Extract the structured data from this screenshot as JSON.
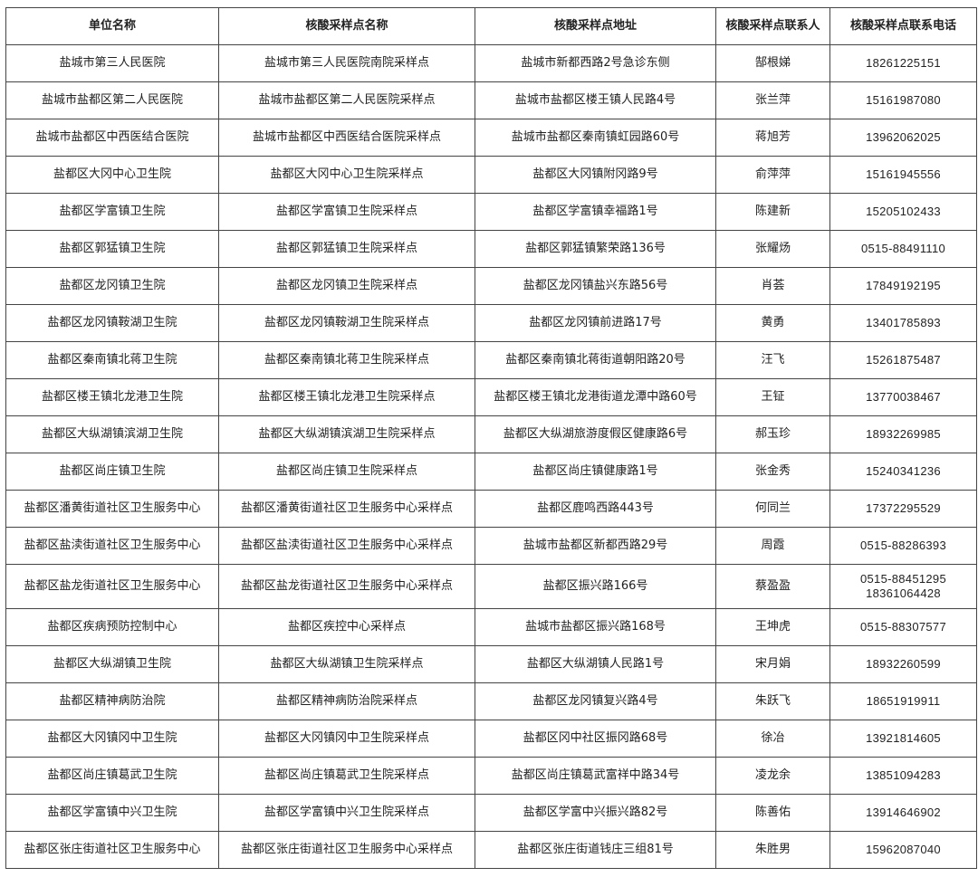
{
  "headers": [
    "单位名称",
    "核酸采样点名称",
    "核酸采样点地址",
    "核酸采样点联系人",
    "核酸采样点联系电话"
  ],
  "rows": [
    {
      "unit": "盐城市第三人民医院",
      "site": "盐城市第三人民医院南院采样点",
      "address": "盐城市新都西路2号急诊东侧",
      "contact": "郜根娣",
      "phone": [
        "18261225151"
      ]
    },
    {
      "unit": "盐城市盐都区第二人民医院",
      "site": "盐城市盐都区第二人民医院采样点",
      "address": "盐城市盐都区楼王镇人民路4号",
      "contact": "张兰萍",
      "phone": [
        "15161987080"
      ]
    },
    {
      "unit": "盐城市盐都区中西医结合医院",
      "site": "盐城市盐都区中西医结合医院采样点",
      "address": "盐城市盐都区秦南镇虹园路60号",
      "contact": "蒋旭芳",
      "phone": [
        "13962062025"
      ]
    },
    {
      "unit": "盐都区大冈中心卫生院",
      "site": "盐都区大冈中心卫生院采样点",
      "address": "盐都区大冈镇附冈路9号",
      "contact": "俞萍萍",
      "phone": [
        "15161945556"
      ]
    },
    {
      "unit": "盐都区学富镇卫生院",
      "site": "盐都区学富镇卫生院采样点",
      "address": "盐都区学富镇幸福路1号",
      "contact": "陈建新",
      "phone": [
        "15205102433"
      ]
    },
    {
      "unit": "盐都区郭猛镇卫生院",
      "site": "盐都区郭猛镇卫生院采样点",
      "address": "盐都区郭猛镇繁荣路136号",
      "contact": "张耀炀",
      "phone": [
        "0515-88491110"
      ]
    },
    {
      "unit": "盐都区龙冈镇卫生院",
      "site": "盐都区龙冈镇卫生院采样点",
      "address": "盐都区龙冈镇盐兴东路56号",
      "contact": "肖荟",
      "phone": [
        "17849192195"
      ]
    },
    {
      "unit": "盐都区龙冈镇鞍湖卫生院",
      "site": "盐都区龙冈镇鞍湖卫生院采样点",
      "address": "盐都区龙冈镇前进路17号",
      "contact": "黄勇",
      "phone": [
        "13401785893"
      ]
    },
    {
      "unit": "盐都区秦南镇北蒋卫生院",
      "site": "盐都区秦南镇北蒋卫生院采样点",
      "address": "盐都区秦南镇北蒋街道朝阳路20号",
      "contact": "汪飞",
      "phone": [
        "15261875487"
      ]
    },
    {
      "unit": "盐都区楼王镇北龙港卫生院",
      "site": "盐都区楼王镇北龙港卫生院采样点",
      "address": "盐都区楼王镇北龙港街道龙潭中路60号",
      "contact": "王钲",
      "phone": [
        "13770038467"
      ]
    },
    {
      "unit": "盐都区大纵湖镇滨湖卫生院",
      "site": "盐都区大纵湖镇滨湖卫生院采样点",
      "address": "盐都区大纵湖旅游度假区健康路6号",
      "contact": "郝玉珍",
      "phone": [
        "18932269985"
      ]
    },
    {
      "unit": "盐都区尚庄镇卫生院",
      "site": "盐都区尚庄镇卫生院采样点",
      "address": "盐都区尚庄镇健康路1号",
      "contact": "张金秀",
      "phone": [
        "15240341236"
      ]
    },
    {
      "unit": "盐都区潘黄街道社区卫生服务中心",
      "site": "盐都区潘黄街道社区卫生服务中心采样点",
      "address": "盐都区鹿鸣西路443号",
      "contact": "何同兰",
      "phone": [
        "17372295529"
      ]
    },
    {
      "unit": "盐都区盐渎街道社区卫生服务中心",
      "site": "盐都区盐渎街道社区卫生服务中心采样点",
      "address": "盐城市盐都区新都西路29号",
      "contact": "周霞",
      "phone": [
        "0515-88286393"
      ]
    },
    {
      "unit": "盐都区盐龙街道社区卫生服务中心",
      "site": "盐都区盐龙街道社区卫生服务中心采样点",
      "address": "盐都区振兴路166号",
      "contact": "蔡盈盈",
      "phone": [
        "0515-88451295",
        "18361064428"
      ]
    },
    {
      "unit": "盐都区疾病预防控制中心",
      "site": "盐都区疾控中心采样点",
      "address": "盐城市盐都区振兴路168号",
      "contact": "王坤虎",
      "phone": [
        "0515-88307577"
      ]
    },
    {
      "unit": "盐都区大纵湖镇卫生院",
      "site": "盐都区大纵湖镇卫生院采样点",
      "address": "盐都区大纵湖镇人民路1号",
      "contact": "宋月娟",
      "phone": [
        "18932260599"
      ]
    },
    {
      "unit": "盐都区精神病防治院",
      "site": "盐都区精神病防治院采样点",
      "address": "盐都区龙冈镇复兴路4号",
      "contact": "朱跃飞",
      "phone": [
        "18651919911"
      ]
    },
    {
      "unit": "盐都区大冈镇冈中卫生院",
      "site": "盐都区大冈镇冈中卫生院采样点",
      "address": "盐都区冈中社区振冈路68号",
      "contact": "徐冶",
      "phone": [
        "13921814605"
      ]
    },
    {
      "unit": "盐都区尚庄镇葛武卫生院",
      "site": "盐都区尚庄镇葛武卫生院采样点",
      "address": "盐都区尚庄镇葛武富祥中路34号",
      "contact": "凌龙余",
      "phone": [
        "13851094283"
      ]
    },
    {
      "unit": "盐都区学富镇中兴卫生院",
      "site": "盐都区学富镇中兴卫生院采样点",
      "address": "盐都区学富中兴振兴路82号",
      "contact": "陈善佑",
      "phone": [
        "13914646902"
      ]
    },
    {
      "unit": "盐都区张庄街道社区卫生服务中心",
      "site": "盐都区张庄街道社区卫生服务中心采样点",
      "address": "盐都区张庄街道钱庄三组81号",
      "contact": "朱胜男",
      "phone": [
        "15962087040"
      ]
    }
  ]
}
